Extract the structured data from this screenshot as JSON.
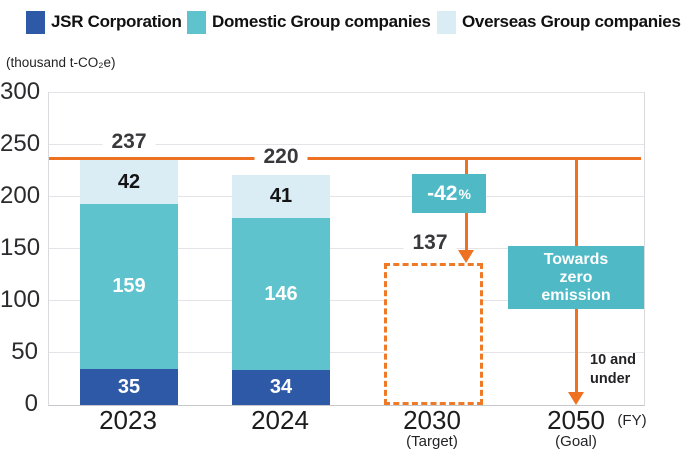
{
  "legend": {
    "items": [
      {
        "label": "JSR Corporation",
        "color": "#2d59a6"
      },
      {
        "label": "Domestic Group companies",
        "color": "#5ec3cc"
      },
      {
        "label": "Overseas Group companies",
        "color": "#daecf4"
      }
    ]
  },
  "axis": {
    "unit_label": "(thousand t-CO₂e)",
    "fy_label": "(FY)"
  },
  "chart_data": {
    "type": "bar",
    "stacked": true,
    "unit": "thousand t-CO2e",
    "categories": [
      "2023",
      "2024",
      "2030",
      "2050"
    ],
    "category_sublabels": [
      "",
      "",
      "(Target)",
      "(Goal)"
    ],
    "series": [
      {
        "name": "JSR Corporation",
        "color": "#2d59a6",
        "values": [
          35,
          34
        ]
      },
      {
        "name": "Domestic Group companies",
        "color": "#5ec3cc",
        "values": [
          159,
          146
        ]
      },
      {
        "name": "Overseas Group companies",
        "color": "#daecf4",
        "values": [
          42,
          41
        ]
      }
    ],
    "totals": [
      237,
      220
    ],
    "baseline_value": 237,
    "target_2030": 137,
    "reduction_badge_value": "-42",
    "reduction_badge_suffix": "%",
    "goal_box_text": "Towards zero emission",
    "goal_note_text": "10 and under",
    "ylim": [
      0,
      300
    ],
    "yticks": [
      0,
      50,
      100,
      150,
      200,
      250,
      300
    ],
    "grid": true,
    "legend_position": "top",
    "colors": {
      "accent_orange": "#ed7120",
      "annotation_teal": "#4fb9c6"
    }
  }
}
